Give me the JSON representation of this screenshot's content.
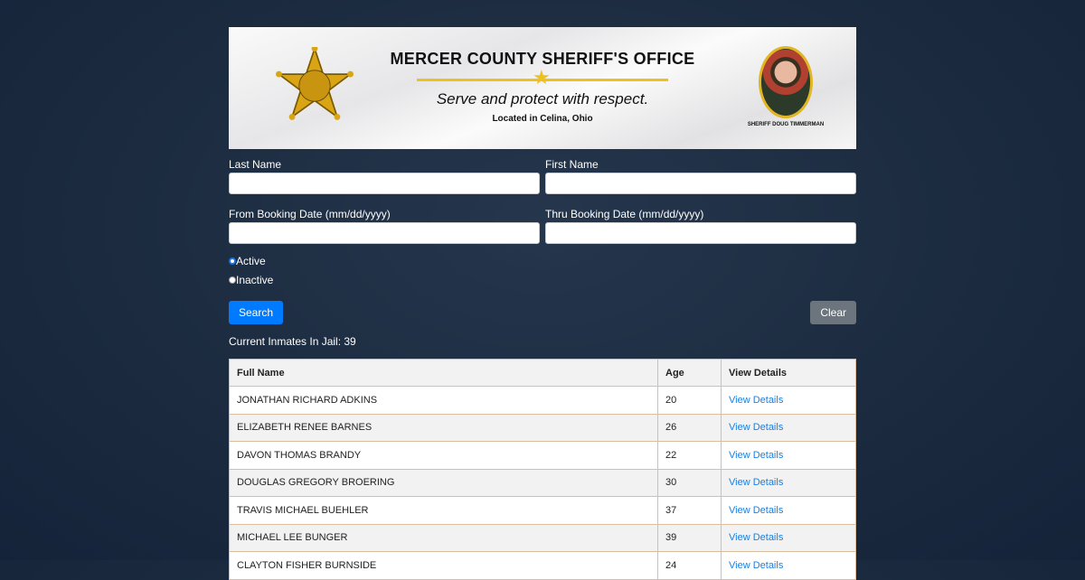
{
  "banner": {
    "title": "MERCER COUNTY SHERIFF'S OFFICE",
    "motto": "Serve and protect with respect.",
    "location": "Located in Celina, Ohio",
    "sheriff_caption": "SHERIFF DOUG TIMMERMAN",
    "badge_text": "SHERIFF"
  },
  "form": {
    "last_name_label": "Last Name",
    "last_name_value": "",
    "first_name_label": "First Name",
    "first_name_value": "",
    "from_label": "From Booking Date (mm/dd/yyyy)",
    "from_value": "",
    "thru_label": "Thru Booking Date (mm/dd/yyyy)",
    "thru_value": "",
    "active_label": "Active",
    "inactive_label": "Inactive",
    "selected_status": "Active",
    "search_label": "Search",
    "clear_label": "Clear"
  },
  "count_text": "Current Inmates In Jail: 39",
  "table": {
    "headers": [
      "Full Name",
      "Age",
      "View Details"
    ],
    "rows": [
      {
        "name": "JONATHAN RICHARD ADKINS",
        "age": "20",
        "link": "View Details"
      },
      {
        "name": "ELIZABETH RENEE BARNES",
        "age": "26",
        "link": "View Details"
      },
      {
        "name": "DAVON THOMAS BRANDY",
        "age": "22",
        "link": "View Details"
      },
      {
        "name": "DOUGLAS GREGORY BROERING",
        "age": "30",
        "link": "View Details"
      },
      {
        "name": "TRAVIS MICHAEL BUEHLER",
        "age": "37",
        "link": "View Details"
      },
      {
        "name": "MICHAEL LEE BUNGER",
        "age": "39",
        "link": "View Details"
      },
      {
        "name": "CLAYTON FISHER BURNSIDE",
        "age": "24",
        "link": "View Details"
      }
    ]
  },
  "colors": {
    "primary": "#007bff",
    "secondary": "#6c757d",
    "link": "#1a7fe0",
    "border": "#d9bfa0"
  }
}
